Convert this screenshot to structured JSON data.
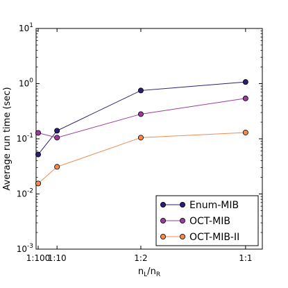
{
  "chart_data": {
    "type": "line",
    "title": "",
    "xlabel": {
      "base": "n",
      "sub1": "L",
      "sep": "/",
      "base2": "n",
      "sub2": "R"
    },
    "ylabel": "Average run time (sec)",
    "x_ticks": [
      "1:100",
      "1:10",
      "1:2",
      "1:1"
    ],
    "x": [
      0.01,
      0.1,
      0.5,
      1.0
    ],
    "xlim": [
      0,
      1.08
    ],
    "y_scale": "log",
    "ylim": [
      0.001,
      10
    ],
    "y_ticks": [
      {
        "base": "10",
        "exp": "-3",
        "value": 0.001
      },
      {
        "base": "10",
        "exp": "-2",
        "value": 0.01
      },
      {
        "base": "10",
        "exp": "-1",
        "value": 0.1
      },
      {
        "base": "10",
        "exp": "0",
        "value": 1
      },
      {
        "base": "10",
        "exp": "1",
        "value": 10
      }
    ],
    "grid": false,
    "legend_position": "bottom-right",
    "series": [
      {
        "name": "Enum-MIB",
        "color": "#2b1d72",
        "values": [
          0.052,
          0.14,
          0.75,
          1.07
        ]
      },
      {
        "name": "OCT-MIB",
        "color": "#9b3a9c",
        "values": [
          0.128,
          0.105,
          0.28,
          0.54
        ]
      },
      {
        "name": "OCT-MIB-II",
        "color": "#f08a50",
        "values": [
          0.0155,
          0.031,
          0.105,
          0.13
        ]
      }
    ]
  }
}
